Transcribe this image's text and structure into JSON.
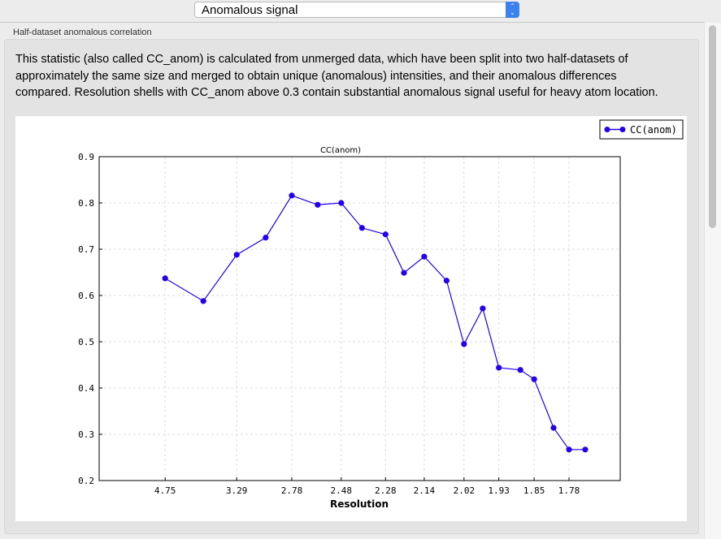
{
  "selector": {
    "value": "Anomalous signal",
    "icon": "updown-chevron-icon"
  },
  "group": {
    "title": "Half-dataset anomalous correlation",
    "description": "This statistic (also called CC_anom) is calculated from unmerged data, which have been split into two half-datasets of approximately the same size and merged to obtain unique (anomalous) intensities, and their anomalous differences compared.  Resolution shells with CC_anom above 0.3 contain substantial anomalous signal useful for heavy atom location."
  },
  "chart_data": {
    "type": "line",
    "title": "CC(anom)",
    "xlabel": "Resolution",
    "ylabel": "",
    "x_scale": "1/d^2",
    "xlim_inv_d2": [
      0,
      0.35
    ],
    "ylim": [
      0.2,
      0.9
    ],
    "grid": true,
    "legend_position": "top-right",
    "x_ticks": [
      "4.75",
      "3.29",
      "2.78",
      "2.48",
      "2.28",
      "2.14",
      "2.02",
      "1.93",
      "1.85",
      "1.78"
    ],
    "y_ticks": [
      "0.2",
      "0.3",
      "0.4",
      "0.5",
      "0.6",
      "0.7",
      "0.8",
      "0.9"
    ],
    "series": [
      {
        "name": "CC(anom)",
        "color": "#2200ee",
        "x": [
          4.75,
          3.78,
          3.29,
          2.99,
          2.78,
          2.61,
          2.48,
          2.38,
          2.28,
          2.21,
          2.14,
          2.07,
          2.02,
          1.97,
          1.93,
          1.88,
          1.85,
          1.81,
          1.78,
          1.75
        ],
        "y": [
          0.637,
          0.588,
          0.688,
          0.725,
          0.816,
          0.796,
          0.8,
          0.746,
          0.732,
          0.649,
          0.684,
          0.632,
          0.495,
          0.572,
          0.444,
          0.439,
          0.419,
          0.314,
          0.267,
          0.267
        ]
      }
    ]
  }
}
